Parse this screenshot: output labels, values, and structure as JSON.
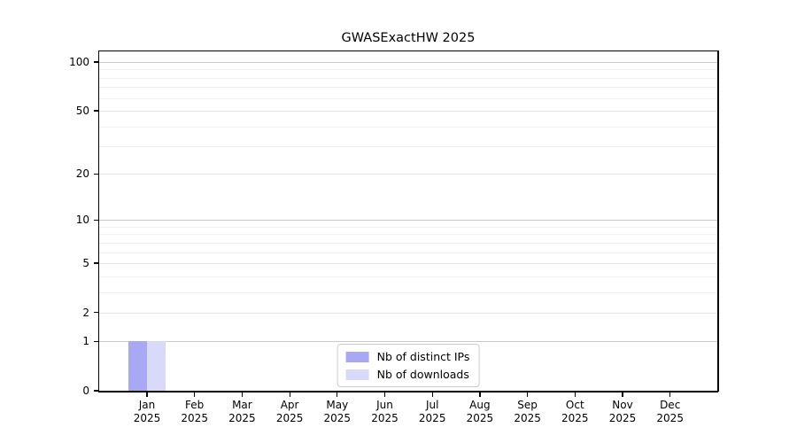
{
  "chart_data": {
    "type": "bar",
    "title": "GWASExactHW 2025",
    "categories": [
      "Jan 2025",
      "Feb 2025",
      "Mar 2025",
      "Apr 2025",
      "May 2025",
      "Jun 2025",
      "Jul 2025",
      "Aug 2025",
      "Sep 2025",
      "Oct 2025",
      "Nov 2025",
      "Dec 2025"
    ],
    "series": [
      {
        "name": "Nb of distinct IPs",
        "color": "#a8a8f4",
        "values": [
          1,
          0,
          0,
          0,
          0,
          0,
          0,
          0,
          0,
          0,
          0,
          0
        ]
      },
      {
        "name": "Nb of downloads",
        "color": "#d9d9f9",
        "values": [
          1,
          0,
          0,
          0,
          0,
          0,
          0,
          0,
          0,
          0,
          0,
          0
        ]
      }
    ],
    "xlabel": "",
    "ylabel": "",
    "y_scale": "log1p",
    "ylim": [
      0,
      116
    ],
    "y_ticks": [
      0,
      1,
      2,
      5,
      10,
      20,
      50,
      100
    ],
    "y_decade_ticks": [
      1,
      10,
      100
    ],
    "y_minor_gridlines": [
      3,
      4,
      6,
      7,
      8,
      9,
      30,
      40,
      60,
      70,
      80,
      90
    ],
    "grid": true,
    "legend_position": "lower center inside"
  },
  "colors": {
    "background": "#ffffff",
    "axis": "#000000",
    "text": "#000000",
    "grid_decade": "#c9c9c9",
    "grid_labeled": "#e4e4e4",
    "grid_minor": "#f2f2f2",
    "legend_border": "#cccccc"
  }
}
